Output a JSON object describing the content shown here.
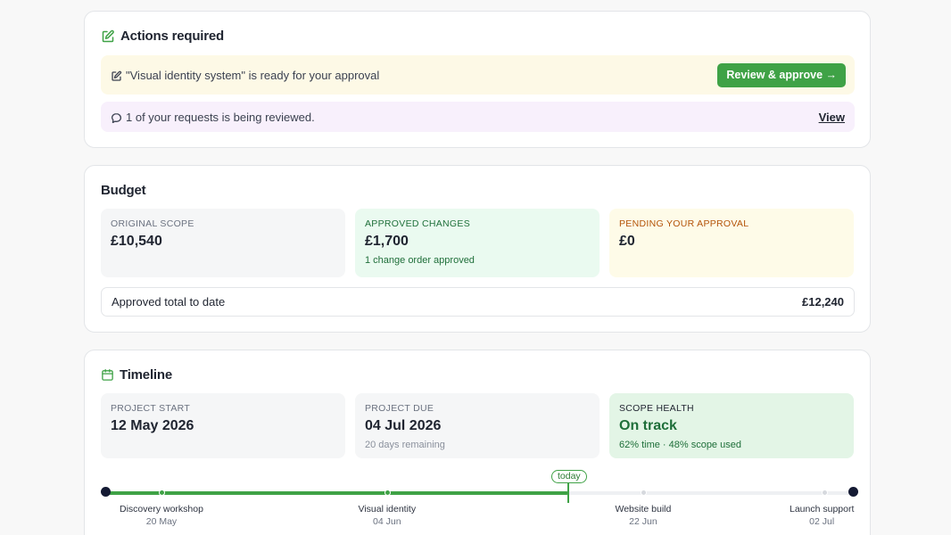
{
  "actions": {
    "title": "Actions required",
    "approval_text": "\"Visual identity system\" is ready for your approval",
    "approve_button": "Review & approve →",
    "review_text": "1 of your requests is being reviewed.",
    "view_link": "View"
  },
  "budget": {
    "title": "Budget",
    "original": {
      "label": "ORIGINAL SCOPE",
      "value": "£10,540"
    },
    "approved": {
      "label": "APPROVED CHANGES",
      "value": "£1,700",
      "sub": "1 change order approved"
    },
    "pending": {
      "label": "PENDING YOUR APPROVAL",
      "value": "£0"
    },
    "total_label": "Approved total to date",
    "total_value": "£12,240"
  },
  "timeline": {
    "title": "Timeline",
    "start": {
      "label": "PROJECT START",
      "value": "12 May 2026"
    },
    "due": {
      "label": "PROJECT DUE",
      "value": "04 Jul 2026",
      "sub": "20 days remaining"
    },
    "health": {
      "label": "SCOPE HEALTH",
      "value": "On track",
      "sub": "62% time · 48% scope used"
    },
    "today_label": "today",
    "progress_fraction": 0.62,
    "milestones": [
      {
        "name": "Discovery workshop",
        "date": "20 May",
        "done": true
      },
      {
        "name": "Visual identity",
        "date": "04 Jun",
        "done": true
      },
      {
        "name": "Website build",
        "date": "22 Jun",
        "done": false
      },
      {
        "name": "Launch support",
        "date": "02 Jul",
        "done": false
      }
    ]
  },
  "colors": {
    "accent_green": "#3fa246",
    "approval_bg": "#fdf9e6",
    "review_bg": "#f8f0fc",
    "navy": "#141a33"
  },
  "icons": {
    "actions": "edit-note-icon",
    "approval": "edit-note-icon",
    "review": "chat-bubble-icon",
    "timeline": "calendar-icon"
  }
}
